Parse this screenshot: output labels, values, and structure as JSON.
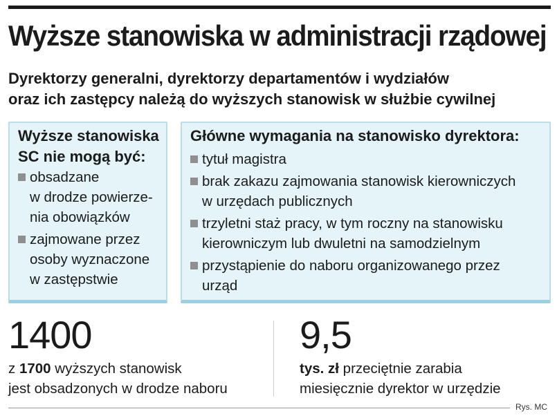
{
  "title": "Wyższe stanowiska w administracji rządowej",
  "subtitle": {
    "line1": "Dyrektorzy generalni, dyrektorzy departamentów i wydziałów",
    "line2": "oraz ich zastępcy należą do wyższych stanowisk w służbie cywilnej"
  },
  "left_box": {
    "heading_line1": "Wyższe stanowiska",
    "heading_line2": "SC nie mogą być:",
    "items": [
      {
        "lines": [
          "obsadzane",
          "w drodze powierze-",
          "nia obowiązków"
        ]
      },
      {
        "lines": [
          "zajmowane przez",
          "osoby wyznaczone",
          "w zastępstwie"
        ]
      }
    ]
  },
  "right_box": {
    "heading": "Główne wymagania na stanowisko dyrektora:",
    "items": [
      {
        "lines": [
          "tytuł magistra"
        ]
      },
      {
        "lines": [
          "brak zakazu zajmowania stanowisk kierowniczych",
          "w urzędach publicznych"
        ]
      },
      {
        "lines": [
          "trzyletni staż pracy, w tym roczny na stanowisku",
          "kierowniczym lub dwuletni na samodzielnym"
        ]
      },
      {
        "lines": [
          "przystąpienie do naboru organizowanego przez",
          "urząd"
        ]
      }
    ]
  },
  "stat_left": {
    "number": "1400",
    "text_prefix": "z ",
    "text_bold": "1700",
    "text_rest": " wyższych stanowisk",
    "text_line2": "jest obsadzonych w drodze naboru"
  },
  "stat_right": {
    "number": "9,5",
    "text_bold": "tys. zł",
    "text_rest": " przeciętnie zarabia",
    "text_line2": "miesięcznie dyrektor w urzędzie"
  },
  "credit": "Rys. MC",
  "colors": {
    "box_background": "#e4f4f9",
    "box_border": "#b9dde9",
    "bullet": "#8f8f8f",
    "text": "#1b1b1b"
  }
}
